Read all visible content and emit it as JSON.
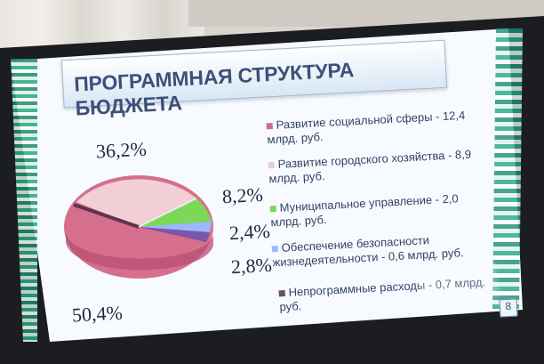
{
  "slide": {
    "title": "ПРОГРАММНАЯ СТРУКТУРА БЮДЖЕТА",
    "page_number": "8",
    "percentages": {
      "social": "50,4%",
      "urban": "36,2%",
      "municipal": "8,2%",
      "safety": "2,4%",
      "nonprogram": "2,8%"
    },
    "legend": [
      {
        "label": "Развитие социальной сферы - 12,4 млрд. руб.",
        "color": "#ce6d8d"
      },
      {
        "label": "Развитие городского хозяйства - 8,9 млрд. руб.",
        "color": "#f0c9cf"
      },
      {
        "label": "Муниципальное управление - 2,0 млрд. руб.",
        "color": "#7ed957"
      },
      {
        "label": "Обеспечение безопасности жизнедеятельности - 0,6 млрд. руб.",
        "color": "#9fb8ff"
      },
      {
        "label": "Непрограммные расходы - 0,7 млрд. руб.",
        "color": "#6b4b62"
      }
    ]
  }
}
